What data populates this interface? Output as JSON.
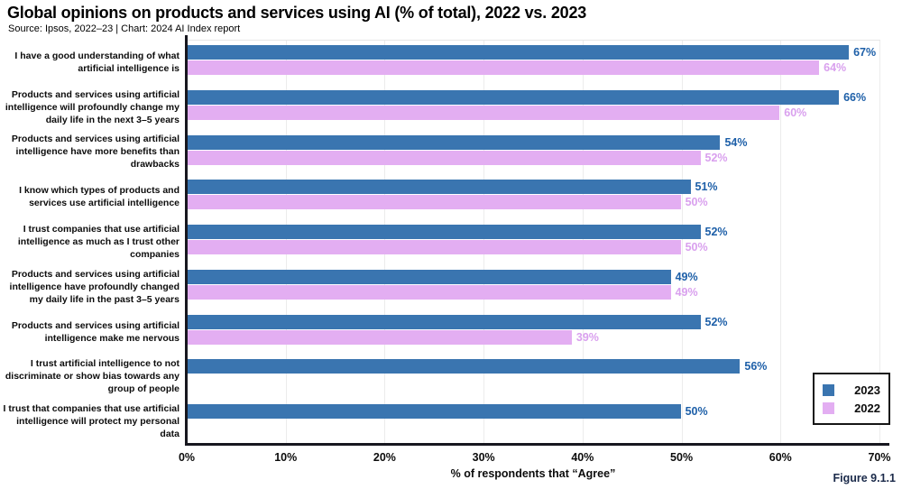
{
  "title": "Global opinions on products and services using AI (% of total), 2022 vs. 2023",
  "source_line": "Source: Ipsos, 2022–23 | Chart: 2024 AI Index report",
  "figure_label": "Figure 9.1.1",
  "x_axis": {
    "label": "% of respondents that “Agree”",
    "ticks": [
      0,
      10,
      20,
      30,
      40,
      50,
      60,
      70
    ],
    "tick_suffix": "%",
    "max": 70
  },
  "colors": {
    "bar_2023": "#3a75b0",
    "bar_2022": "#e3aef2",
    "value_label_2023": "#1d5fa8",
    "value_label_2022": "#d9a0ee",
    "axis": "#17171f",
    "gridline": "#ececec",
    "figure_label": "#1b2a4a"
  },
  "legend": {
    "position": "bottom-right",
    "items": [
      {
        "label": "2023",
        "color": "#3a75b0"
      },
      {
        "label": "2022",
        "color": "#e3aef2"
      }
    ]
  },
  "chart_data": {
    "type": "bar",
    "orientation": "horizontal",
    "title": "Global opinions on products and services using AI (% of total), 2022 vs. 2023",
    "xlabel": "% of respondents that “Agree”",
    "ylabel": "",
    "xlim": [
      0,
      70
    ],
    "grid": "vertical gridlines every 10%",
    "legend_position": "bottom-right",
    "value_suffix": "%",
    "categories": [
      "I have a good understanding of what artificial intelligence is",
      "Products and services using artificial intelligence will profoundly change my daily life in the next 3–5 years",
      "Products and services using artificial intelligence have more benefits than drawbacks",
      "I know which types of products and services use artificial intelligence",
      "I trust companies that use artificial intelligence as much as I trust other companies",
      "Products and services using artificial intelligence have profoundly changed my daily life in the past 3–5 years",
      "Products and services using artificial intelligence make me nervous",
      "I trust artificial intelligence to not discriminate or show bias towards any group of people",
      "I trust that companies that use artificial intelligence will protect my personal data"
    ],
    "series": [
      {
        "name": "2023",
        "color": "#3a75b0",
        "label_color": "#1d5fa8",
        "values": [
          67,
          66,
          54,
          51,
          52,
          49,
          52,
          56,
          50
        ]
      },
      {
        "name": "2022",
        "color": "#e3aef2",
        "label_color": "#d9a0ee",
        "values": [
          64,
          60,
          52,
          50,
          50,
          49,
          39,
          null,
          null
        ]
      }
    ]
  }
}
